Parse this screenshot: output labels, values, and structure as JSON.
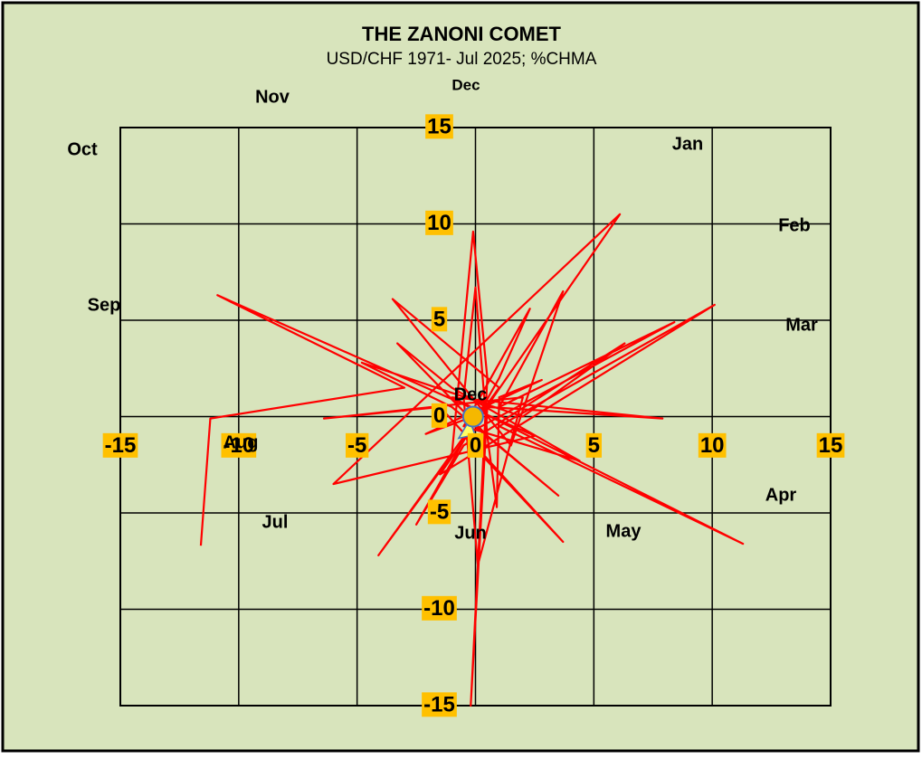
{
  "chart_data": {
    "type": "line",
    "title": "THE ZANONI  COMET",
    "subtitle": "USD/CHF 1971- Jul  2025; %CHMA",
    "annotations": [
      "Dec",
      "Nov",
      "Oct",
      "Jan",
      "Feb",
      "Sep",
      "Mar",
      "Apr",
      "May",
      "Jun",
      "Jul",
      "Aug",
      "Dec"
    ],
    "x": [
      -11.6,
      -11.2,
      -3.0,
      -10.9,
      2.5,
      -6.0,
      6.1,
      -1.5,
      10.1,
      1.0,
      11.3,
      -1.0,
      7.9,
      0.5,
      -0.2,
      0.5,
      -0.1,
      -1.0,
      -4.1,
      1.0,
      -3.5,
      1.5,
      3.7,
      1.0,
      8.4,
      -0.5,
      3.7,
      -1.5,
      -6.4,
      2.0,
      0.1,
      -0.5,
      0.0,
      0.5,
      3.5,
      -1.0,
      -4.8,
      2.0,
      6.3,
      -0.5,
      -2.5,
      1.0,
      2.3,
      -0.5,
      4.4,
      -1.0,
      -3.3,
      0.5,
      0.9,
      1.0,
      2.8,
      -2.1,
      -0.1
    ],
    "y": [
      -6.7,
      -0.1,
      1.5,
      6.3,
      -1.0,
      -3.5,
      10.5,
      -3.0,
      5.8,
      -0.5,
      -6.6,
      1.0,
      -0.1,
      0.5,
      -15.0,
      2.0,
      9.6,
      -2.0,
      -7.2,
      1.5,
      6.1,
      -1.5,
      6.5,
      0.5,
      4.9,
      -1.0,
      -6.5,
      0.5,
      -0.1,
      1.0,
      -7.7,
      1.0,
      6.7,
      -1.0,
      -4.1,
      0.5,
      2.8,
      0.0,
      3.8,
      -1.5,
      -5.6,
      2.0,
      5.6,
      -0.5,
      -2.3,
      1.5,
      3.8,
      -1.0,
      -4.7,
      1.0,
      1.9,
      -0.9,
      0.0
    ],
    "color": "#ff0000",
    "current_point": {
      "x": -0.1,
      "y": 0.0,
      "color": "#f5b800"
    },
    "xlim": [
      -15,
      15
    ],
    "ylim": [
      -15,
      15
    ],
    "xticks": [
      -15,
      -10,
      -5,
      0,
      5,
      10,
      15
    ],
    "yticks": [
      -15,
      -10,
      -5,
      0,
      5,
      10,
      15
    ],
    "grid": true
  }
}
